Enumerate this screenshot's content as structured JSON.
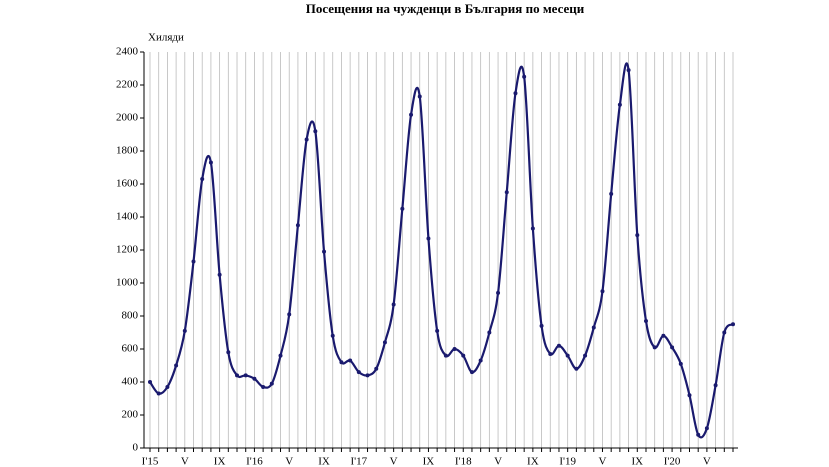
{
  "chart_data": {
    "type": "line",
    "title": "Посещения на чужденци в България по месеци",
    "y_label": "Хиляди",
    "categories": [
      "I'15",
      null,
      null,
      null,
      "V",
      null,
      null,
      null,
      "IX",
      null,
      null,
      null,
      "I'16",
      null,
      null,
      null,
      "V",
      null,
      null,
      null,
      "IX",
      null,
      null,
      null,
      "I'17",
      null,
      null,
      null,
      "V",
      null,
      null,
      null,
      "IX",
      null,
      null,
      null,
      "I'18",
      null,
      null,
      null,
      "V",
      null,
      null,
      null,
      "IX",
      null,
      null,
      null,
      "I'19",
      null,
      null,
      null,
      "V",
      null,
      null,
      null,
      "IX",
      null,
      null,
      null,
      "I'20",
      null,
      null,
      null,
      "V",
      null,
      null,
      null
    ],
    "series": [
      {
        "color": "#1a1a6e",
        "values": [
          400,
          330,
          370,
          500,
          710,
          1130,
          1630,
          1730,
          1050,
          580,
          440,
          440,
          420,
          370,
          390,
          560,
          810,
          1350,
          1870,
          1920,
          1190,
          680,
          520,
          530,
          460,
          440,
          480,
          640,
          870,
          1450,
          2020,
          2130,
          1270,
          710,
          560,
          600,
          560,
          460,
          530,
          700,
          940,
          1550,
          2150,
          2250,
          1330,
          740,
          570,
          620,
          560,
          480,
          560,
          730,
          950,
          1540,
          2080,
          2290,
          1290,
          770,
          610,
          680,
          610,
          510,
          320,
          80,
          120,
          380,
          700,
          750
        ]
      }
    ],
    "ylim": [
      0,
      2400
    ],
    "yticks": [
      0,
      200,
      400,
      600,
      800,
      1000,
      1200,
      1400,
      1600,
      1800,
      2000,
      2200,
      2400
    ],
    "grid": true
  }
}
